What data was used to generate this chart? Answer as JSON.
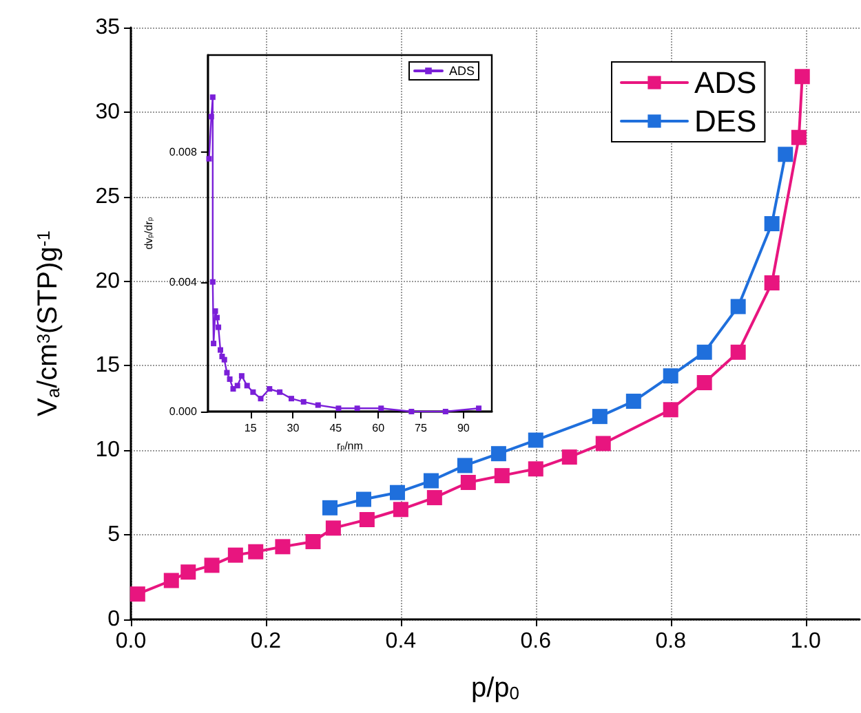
{
  "chart_data": [
    {
      "type": "line",
      "xlabel": "p/p$_{0}$",
      "ylabel": "V$_{a}$/cm$^{3}$(STP)g$^{-1}$",
      "xlim": [
        0,
        1.08
      ],
      "ylim": [
        0,
        35
      ],
      "xticks": [
        {
          "value": 0,
          "label": "0.0"
        },
        {
          "value": 0.2,
          "label": "0.2"
        },
        {
          "value": 0.4,
          "label": "0.4"
        },
        {
          "value": 0.6,
          "label": "0.6"
        },
        {
          "value": 0.8,
          "label": "0.8"
        },
        {
          "value": 1,
          "label": "1.0"
        }
      ],
      "yticks": [
        0,
        5,
        10,
        15,
        20,
        25,
        30,
        35
      ],
      "grid": true,
      "legend": "top right",
      "marker": "square",
      "line_style": "solid",
      "series": [
        {
          "name": "ADS",
          "color": "#e8157f",
          "x": [
            0.01,
            0.06,
            0.085,
            0.12,
            0.155,
            0.185,
            0.225,
            0.27,
            0.3,
            0.35,
            0.4,
            0.45,
            0.5,
            0.55,
            0.6,
            0.65,
            0.7,
            0.8,
            0.85,
            0.9,
            0.95,
            0.99,
            0.995
          ],
          "values": [
            1.5,
            2.3,
            2.8,
            3.2,
            3.8,
            4.0,
            4.3,
            4.6,
            5.4,
            5.9,
            6.5,
            7.2,
            8.1,
            8.5,
            8.9,
            9.6,
            10.4,
            12.4,
            14.0,
            15.8,
            19.9,
            28.5,
            32.1
          ]
        },
        {
          "name": "DES",
          "color": "#1f6fdc",
          "x": [
            0.295,
            0.345,
            0.395,
            0.445,
            0.495,
            0.545,
            0.6,
            0.695,
            0.745,
            0.8,
            0.85,
            0.9,
            0.95,
            0.97
          ],
          "values": [
            6.6,
            7.1,
            7.5,
            8.2,
            9.1,
            9.8,
            10.6,
            12.0,
            12.9,
            14.4,
            15.8,
            18.5,
            23.4,
            27.5
          ]
        }
      ]
    },
    {
      "type": "line",
      "xlabel": "r$_{p}$/nm",
      "ylabel": "dv$_{p}$/dr$_{p}$",
      "xlim": [
        0,
        100
      ],
      "ylim": [
        0,
        0.011
      ],
      "xticks": [
        15,
        30,
        45,
        60,
        75,
        90
      ],
      "yticks": [
        {
          "value": 0,
          "label": "0.000"
        },
        {
          "value": 0.004,
          "label": "0.004"
        },
        {
          "value": 0.008,
          "label": "0.008"
        }
      ],
      "legend": "top right",
      "marker": "square",
      "line_style": "solid",
      "series": [
        {
          "name": "ADS",
          "color": "#7a1fd8",
          "x": [
            0.4,
            1.2,
            1.7,
            1.7,
            2.0,
            2.6,
            3.2,
            3.7,
            4.4,
            5.0,
            5.8,
            6.7,
            7.7,
            8.9,
            10.4,
            11.9,
            13.8,
            15.9,
            18.6,
            21.7,
            25.3,
            29.4,
            33.7,
            38.8,
            46,
            52.6,
            61,
            71.7,
            83.7,
            95.4
          ],
          "values": [
            0.0078,
            0.0091,
            0.0097,
            0.004,
            0.0021,
            0.0031,
            0.0029,
            0.0026,
            0.0019,
            0.0017,
            0.0016,
            0.0012,
            0.001,
            0.0007,
            0.0008,
            0.0011,
            0.0008,
            0.0006,
            0.0004,
            0.0007,
            0.0006,
            0.0004,
            0.0003,
            0.0002,
            0.0001,
            0.0001,
            0.0001,
            0.0,
            0.0,
            0.0001
          ]
        }
      ]
    }
  ]
}
